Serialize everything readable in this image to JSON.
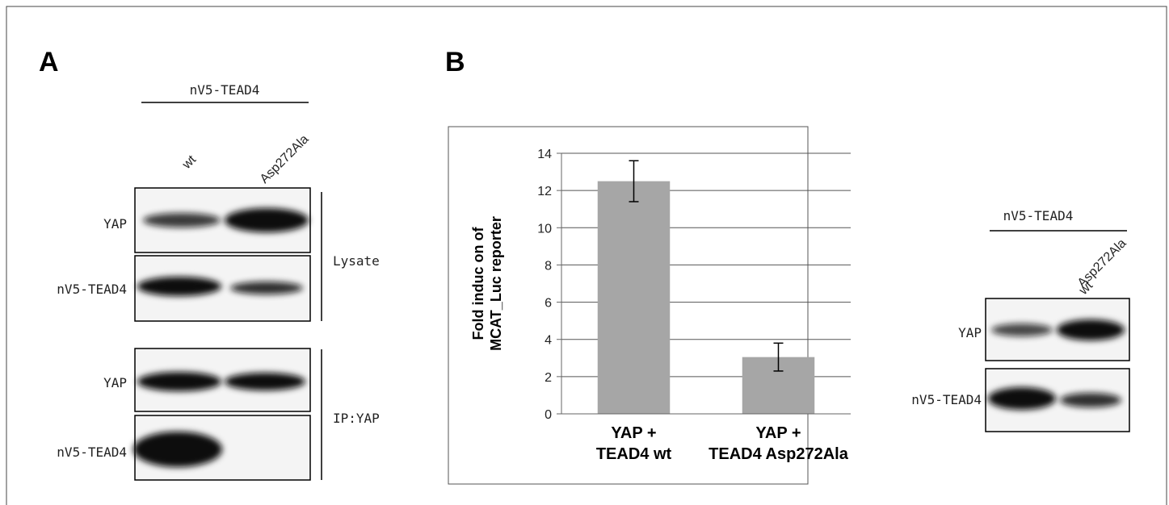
{
  "panel_a": {
    "label": "A",
    "construct": "nV5-TEAD4",
    "lanes": [
      "wt",
      "Asp272Ala"
    ],
    "rows": [
      "YAP",
      "nV5-TEAD4",
      "YAP",
      "nV5-TEAD4"
    ],
    "groups": [
      "Lysate",
      "IP:YAP"
    ]
  },
  "panel_b_label": "B",
  "chart_data": {
    "type": "bar",
    "ylabel": [
      "Fold induc on of",
      "MCAT_Luc reporter"
    ],
    "categories": [
      [
        "YAP +",
        "TEAD4 wt"
      ],
      [
        "YAP +",
        "TEAD4 Asp272Ala"
      ]
    ],
    "values": [
      12.5,
      3.05
    ],
    "errors": [
      1.1,
      0.75
    ],
    "color": "#a6a6a6",
    "ylim": [
      0,
      14
    ],
    "yticks": [
      0,
      2,
      4,
      6,
      8,
      10,
      12,
      14
    ],
    "grid": true
  },
  "panel_c": {
    "construct": "nV5-TEAD4",
    "lanes": [
      "wt",
      "Asp272Ala"
    ],
    "rows": [
      "YAP",
      "nV5-TEAD4"
    ]
  }
}
